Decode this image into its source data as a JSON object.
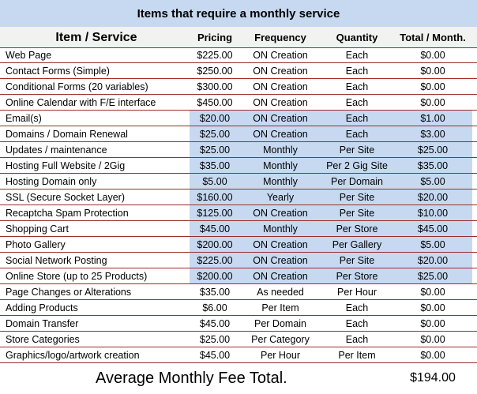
{
  "title": "Items that require a monthly service",
  "headers": {
    "item": "Item / Service",
    "pricing": "Pricing",
    "frequency": "Frequency",
    "quantity": "Quantity",
    "total": "Total / Month."
  },
  "rows": [
    {
      "item": "Web Page",
      "pricing": "$225.00",
      "frequency": "ON Creation",
      "quantity": "Each",
      "total": "$0.00",
      "highlight": false
    },
    {
      "item": "Contact Forms (Simple)",
      "pricing": "$250.00",
      "frequency": "ON Creation",
      "quantity": "Each",
      "total": "$0.00",
      "highlight": false
    },
    {
      "item": "Conditional Forms (20 variables)",
      "pricing": "$300.00",
      "frequency": "ON Creation",
      "quantity": "Each",
      "total": "$0.00",
      "highlight": false
    },
    {
      "item": "Online Calendar with F/E interface",
      "pricing": "$450.00",
      "frequency": "ON Creation",
      "quantity": "Each",
      "total": "$0.00",
      "highlight": false
    },
    {
      "item": "Email(s)",
      "pricing": "$20.00",
      "frequency": "ON Creation",
      "quantity": "Each",
      "total": "$1.00",
      "highlight": true
    },
    {
      "item": "Domains / Domain Renewal",
      "pricing": "$25.00",
      "frequency": "ON Creation",
      "quantity": "Each",
      "total": "$3.00",
      "highlight": true
    },
    {
      "item": "Updates / maintenance",
      "pricing": "$25.00",
      "frequency": "Monthly",
      "quantity": "Per Site",
      "total": "$25.00",
      "highlight": true
    },
    {
      "item": "Hosting Full Website / 2Gig",
      "pricing": "$35.00",
      "frequency": "Monthly",
      "quantity": "Per  2 Gig Site",
      "total": "$35.00",
      "highlight": true
    },
    {
      "item": "Hosting Domain only",
      "pricing": "$5.00",
      "frequency": "Monthly",
      "quantity": "Per Domain",
      "total": "$5.00",
      "highlight": true
    },
    {
      "item": "SSL (Secure Socket Layer)",
      "pricing": "$160.00",
      "frequency": "Yearly",
      "quantity": "Per Site",
      "total": "$20.00",
      "highlight": true
    },
    {
      "item": "Recaptcha Spam Protection",
      "pricing": "$125.00",
      "frequency": "ON Creation",
      "quantity": "Per Site",
      "total": "$10.00",
      "highlight": true
    },
    {
      "item": "Shopping Cart",
      "pricing": "$45.00",
      "frequency": "Monthly",
      "quantity": "Per Store",
      "total": "$45.00",
      "highlight": true
    },
    {
      "item": "Photo Gallery",
      "pricing": "$200.00",
      "frequency": "ON Creation",
      "quantity": "Per Gallery",
      "total": "$5.00",
      "highlight": true
    },
    {
      "item": "Social Network Posting",
      "pricing": "$225.00",
      "frequency": "ON Creation",
      "quantity": "Per Site",
      "total": "$20.00",
      "highlight": true
    },
    {
      "item": "Online Store (up to 25  Products)",
      "pricing": "$200.00",
      "frequency": "ON Creation",
      "quantity": "Per Store",
      "total": "$25.00",
      "highlight": true
    },
    {
      "item": "Page Changes or Alterations",
      "pricing": "$35.00",
      "frequency": "As needed",
      "quantity": "Per Hour",
      "total": "$0.00",
      "highlight": false
    },
    {
      "item": "Adding Products",
      "pricing": "$6.00",
      "frequency": "Per Item",
      "quantity": "Each",
      "total": "$0.00",
      "highlight": false
    },
    {
      "item": "Domain Transfer",
      "pricing": "$45.00",
      "frequency": "Per Domain",
      "quantity": "Each",
      "total": "$0.00",
      "highlight": false
    },
    {
      "item": "Store Categories",
      "pricing": "$25.00",
      "frequency": "Per Category",
      "quantity": "Each",
      "total": "$0.00",
      "highlight": false
    },
    {
      "item": "Graphics/logo/artwork creation",
      "pricing": "$45.00",
      "frequency": "Per Hour",
      "quantity": "Per Item",
      "total": "$0.00",
      "highlight": false
    }
  ],
  "footer": {
    "label": "Average Monthly Fee Total.",
    "value": "$194.00"
  },
  "colors": {
    "header_blue": "#c6d9f1",
    "row_rule": "#9b2d2d"
  }
}
